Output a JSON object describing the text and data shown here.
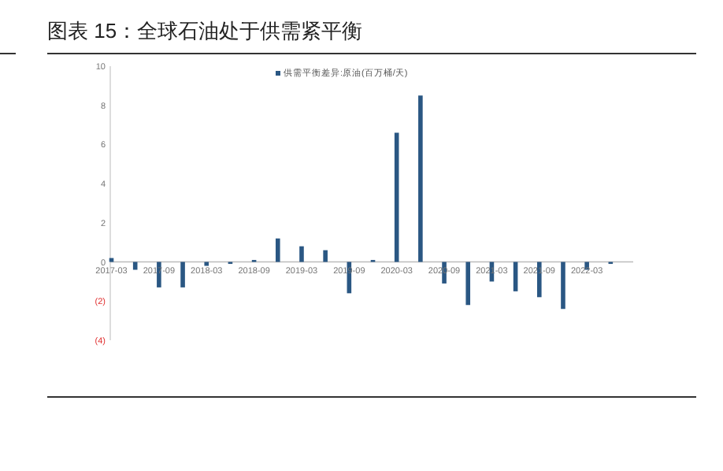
{
  "chart_data": {
    "type": "bar",
    "title": "图表 15：全球石油处于供需紧平衡",
    "categories": [
      "2017-03",
      null,
      "2017-09",
      null,
      "2018-03",
      null,
      "2018-09",
      null,
      "2019-03",
      null,
      "2019-09",
      null,
      "2020-03",
      null,
      "2020-09",
      null,
      "2021-03",
      null,
      "2021-09",
      null,
      "2022-03",
      null
    ],
    "series": [
      {
        "name": "供需平衡差异:原油(百万桶/天)",
        "color": "#2a5783",
        "values": [
          0.2,
          -0.4,
          -1.3,
          -1.3,
          -0.2,
          -0.1,
          0.1,
          1.2,
          0.8,
          0.6,
          -1.6,
          0.1,
          6.6,
          8.5,
          -1.1,
          -2.2,
          -1.0,
          -1.5,
          -1.8,
          -2.4,
          -0.4,
          -0.1
        ]
      }
    ],
    "ylim": [
      -4,
      10
    ],
    "yticks": [
      {
        "value": -4,
        "label": "(4)"
      },
      {
        "value": -2,
        "label": "(2)"
      },
      0,
      2,
      4,
      6,
      8,
      10
    ],
    "legend": "top"
  }
}
